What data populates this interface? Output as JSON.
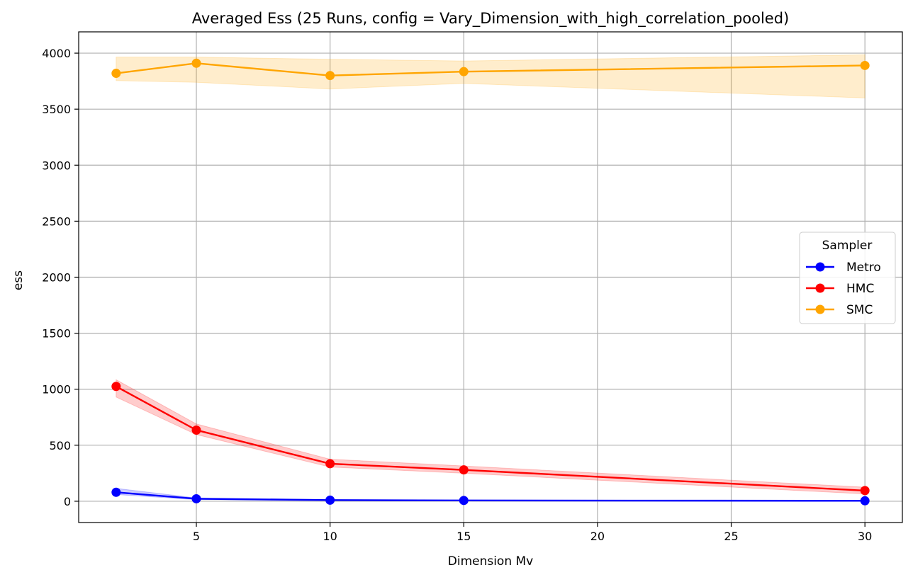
{
  "chart_data": {
    "type": "line",
    "title": "Averaged Ess (25 Runs, config = Vary_Dimension_with_high_correlation_pooled)",
    "xlabel": "Dimension Mv",
    "ylabel": "ess",
    "xlim": [
      0.6,
      31.4
    ],
    "ylim": [
      -190,
      4190
    ],
    "xticks": [
      5,
      10,
      15,
      20,
      25,
      30
    ],
    "yticks": [
      0,
      500,
      1000,
      1500,
      2000,
      2500,
      3000,
      3500,
      4000
    ],
    "grid": true,
    "legend": {
      "title": "Sampler",
      "placement": "center-right"
    },
    "x": [
      2,
      5,
      10,
      15,
      30
    ],
    "series": [
      {
        "name": "Metro",
        "color": "#0000ff",
        "marker": "circle",
        "values": [
          80,
          22,
          10,
          7,
          4
        ],
        "band_lower": [
          60,
          14,
          6,
          4,
          2
        ],
        "band_upper": [
          115,
          30,
          14,
          10,
          7
        ]
      },
      {
        "name": "HMC",
        "color": "#ff0000",
        "marker": "circle",
        "values": [
          1025,
          635,
          335,
          280,
          95
        ],
        "band_lower": [
          930,
          595,
          305,
          250,
          65
        ],
        "band_upper": [
          1085,
          690,
          375,
          315,
          125
        ]
      },
      {
        "name": "SMC",
        "color": "#ffa500",
        "marker": "circle",
        "values": [
          3820,
          3910,
          3800,
          3835,
          3890
        ],
        "band_lower": [
          3755,
          3740,
          3680,
          3730,
          3600
        ],
        "band_upper": [
          3965,
          3965,
          3945,
          3930,
          3985
        ]
      }
    ]
  }
}
